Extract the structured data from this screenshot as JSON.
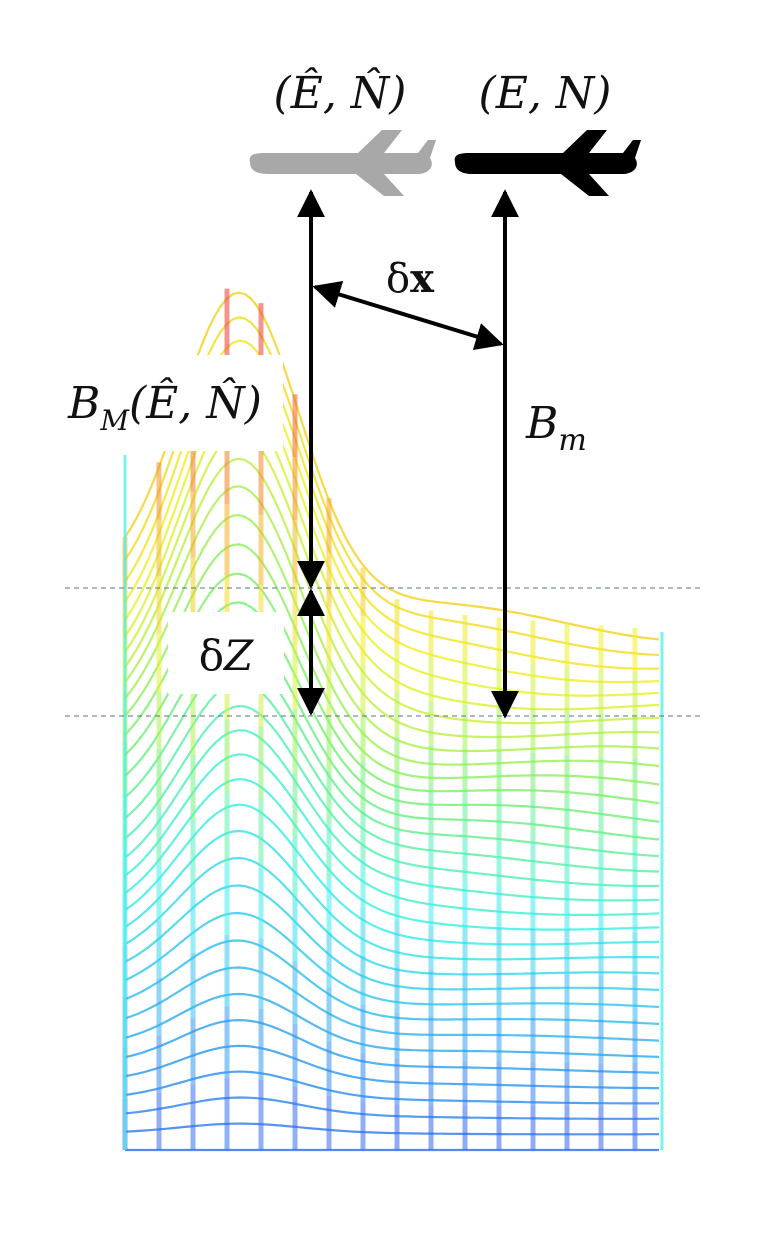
{
  "labels": {
    "estimated_position": "(Ê, N̂)",
    "true_position": "(E, N)",
    "position_error_symbol": "δ",
    "position_error_var": "x",
    "map_field_main": "B",
    "map_field_sub": "M",
    "map_field_args": "(Ê, N̂)",
    "measured_field_main": "B",
    "measured_field_sub": "m",
    "height_error_symbol": "δ",
    "height_error_var": "Z"
  },
  "colors": {
    "estimated_aircraft": "#a8a8a8",
    "true_aircraft": "#000000",
    "arrows": "#000000",
    "reference_lines": "#5a6f94",
    "surface_colormap": [
      "#3a5cf0",
      "#35a8f0",
      "#3ef0ec",
      "#7cf072",
      "#f2f22a",
      "#f5a723",
      "#f0502c",
      "#e8303d"
    ]
  },
  "icons": {
    "estimated_aircraft": "airplane-icon",
    "true_aircraft": "airplane-icon"
  }
}
